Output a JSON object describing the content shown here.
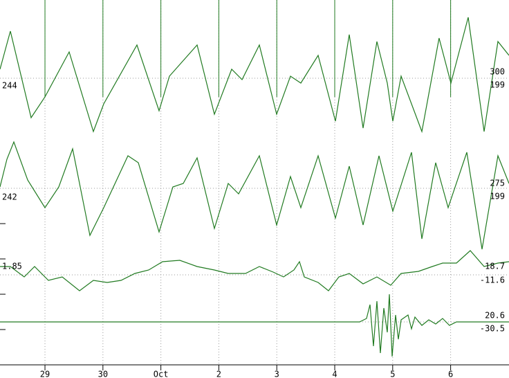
{
  "chart_data": {
    "type": "line",
    "xlim": [
      0.224,
      9.007
    ],
    "xticks": [
      {
        "value": 1,
        "label": "29"
      },
      {
        "value": 2,
        "label": "30"
      },
      {
        "value": 3,
        "label": "Oct"
      },
      {
        "value": 4,
        "label": "2"
      },
      {
        "value": 5,
        "label": "3"
      },
      {
        "value": 6,
        "label": "4"
      },
      {
        "value": 7,
        "label": "5"
      },
      {
        "value": 8,
        "label": "6"
      }
    ],
    "grid": true,
    "series": [
      {
        "color": "#207a20",
        "ylim": [
          0,
          190
        ],
        "label_left": "244",
        "labels_right": [
          "300",
          "199"
        ],
        "x": [
          0.224,
          0.403,
          0.761,
          1.0,
          1.417,
          1.835,
          2.014,
          2.587,
          2.969,
          3.148,
          3.625,
          3.923,
          4.222,
          4.401,
          4.699,
          4.997,
          5.236,
          5.415,
          5.713,
          6.012,
          6.25,
          6.489,
          6.728,
          6.907,
          7.002,
          7.145,
          7.503,
          7.801,
          8.004,
          8.303,
          8.577,
          8.816,
          9.007
        ],
        "values": [
          110,
          165,
          40,
          70,
          135,
          20,
          60,
          145,
          50,
          100,
          145,
          45,
          110,
          95,
          145,
          45,
          100,
          90,
          130,
          35,
          160,
          25,
          150,
          90,
          35,
          100,
          20,
          155,
          90,
          185,
          20,
          150,
          130
        ]
      },
      {
        "color": "#207a20",
        "ylim": [
          0,
          170
        ],
        "label_left": "242",
        "labels_right": [
          "275",
          "199"
        ],
        "x": [
          0.224,
          0.343,
          0.463,
          0.701,
          1.0,
          1.238,
          1.477,
          1.775,
          2.014,
          2.432,
          2.611,
          2.969,
          3.207,
          3.386,
          3.625,
          3.923,
          4.162,
          4.341,
          4.699,
          4.997,
          5.236,
          5.415,
          5.713,
          6.012,
          6.25,
          6.489,
          6.763,
          7.002,
          7.324,
          7.503,
          7.742,
          7.957,
          8.279,
          8.541,
          8.816,
          9.007
        ],
        "values": [
          100,
          140,
          165,
          110,
          70,
          100,
          155,
          30,
          70,
          145,
          135,
          35,
          100,
          105,
          142,
          40,
          105,
          90,
          145,
          45,
          115,
          70,
          145,
          55,
          130,
          45,
          145,
          65,
          150,
          25,
          135,
          70,
          150,
          10,
          145,
          105
        ]
      },
      {
        "color": "#207a20",
        "ylim": [
          0,
          60
        ],
        "label_left": "1.85",
        "labels_right": [
          "18.7",
          "-11.6"
        ],
        "x": [
          0.224,
          0.403,
          0.642,
          0.821,
          1.059,
          1.298,
          1.596,
          1.835,
          2.074,
          2.312,
          2.551,
          2.79,
          3.028,
          3.327,
          3.625,
          3.923,
          4.162,
          4.46,
          4.699,
          4.938,
          5.117,
          5.296,
          5.391,
          5.475,
          5.713,
          5.892,
          6.071,
          6.25,
          6.489,
          6.728,
          6.966,
          7.145,
          7.444,
          7.682,
          7.861,
          8.1,
          8.339,
          8.577,
          8.816,
          9.007
        ],
        "values": [
          45,
          45,
          30,
          45,
          25,
          30,
          10,
          25,
          22,
          25,
          35,
          40,
          52,
          54,
          45,
          40,
          35,
          35,
          45,
          37,
          30,
          40,
          52,
          30,
          22,
          10,
          30,
          35,
          20,
          30,
          18,
          35,
          38,
          45,
          50,
          50,
          68,
          45,
          50,
          52
        ]
      },
      {
        "color": "#207a20",
        "ylim": [
          0,
          110
        ],
        "labels_right": [
          "20.6",
          "-30.5"
        ],
        "x": [
          0.224,
          1.417,
          2.611,
          3.804,
          4.997,
          5.594,
          6.429,
          6.549,
          6.608,
          6.668,
          6.728,
          6.787,
          6.847,
          6.907,
          6.942,
          6.99,
          7.05,
          7.098,
          7.145,
          7.265,
          7.324,
          7.384,
          7.503,
          7.623,
          7.742,
          7.861,
          7.98,
          8.1,
          8.22,
          9.007
        ],
        "values": [
          65,
          65,
          65,
          65,
          65,
          65,
          65,
          70,
          90,
          30,
          95,
          20,
          85,
          50,
          105,
          15,
          75,
          40,
          68,
          75,
          55,
          72,
          60,
          68,
          62,
          70,
          60,
          65,
          65,
          65
        ]
      }
    ]
  }
}
